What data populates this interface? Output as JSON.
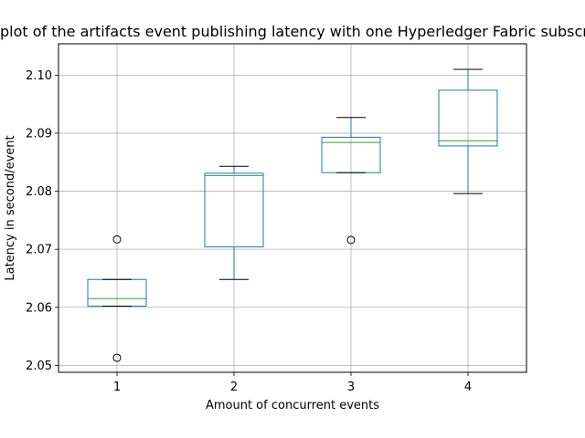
{
  "chart_data": {
    "type": "box",
    "title": "Box plot of the artifacts event publishing latency with one Hyperledger Fabric subscriber",
    "xlabel": "Amount of concurrent events",
    "ylabel": "Latency in second/event",
    "categories": [
      "1",
      "2",
      "3",
      "4"
    ],
    "ylim": [
      2.0488,
      2.1054
    ],
    "yticks": [
      2.05,
      2.06,
      2.07,
      2.08,
      2.09,
      2.1
    ],
    "ytick_labels": [
      "2.05",
      "2.06",
      "2.07",
      "2.08",
      "2.09",
      "2.10"
    ],
    "grid": true,
    "boxes": [
      {
        "category": "1",
        "whisker_low": 2.0602,
        "q1": 2.0602,
        "median": 2.0615,
        "q3": 2.0648,
        "whisker_high": 2.0648,
        "outliers": [
          2.0717,
          2.0513
        ]
      },
      {
        "category": "2",
        "whisker_low": 2.0648,
        "q1": 2.0704,
        "median": 2.0827,
        "q3": 2.0831,
        "whisker_high": 2.0843,
        "outliers": []
      },
      {
        "category": "3",
        "whisker_low": 2.0832,
        "q1": 2.0832,
        "median": 2.0884,
        "q3": 2.0893,
        "whisker_high": 2.0927,
        "outliers": [
          2.0716
        ]
      },
      {
        "category": "4",
        "whisker_low": 2.0796,
        "q1": 2.0878,
        "median": 2.0887,
        "q3": 2.0974,
        "whisker_high": 2.101,
        "outliers": []
      }
    ],
    "colors": {
      "box": "#1f77b4",
      "median": "#2ca02c",
      "whisker": "#1f77b4",
      "cap": "#000000",
      "grid": "#b0b0b0",
      "axis": "#000000"
    }
  }
}
